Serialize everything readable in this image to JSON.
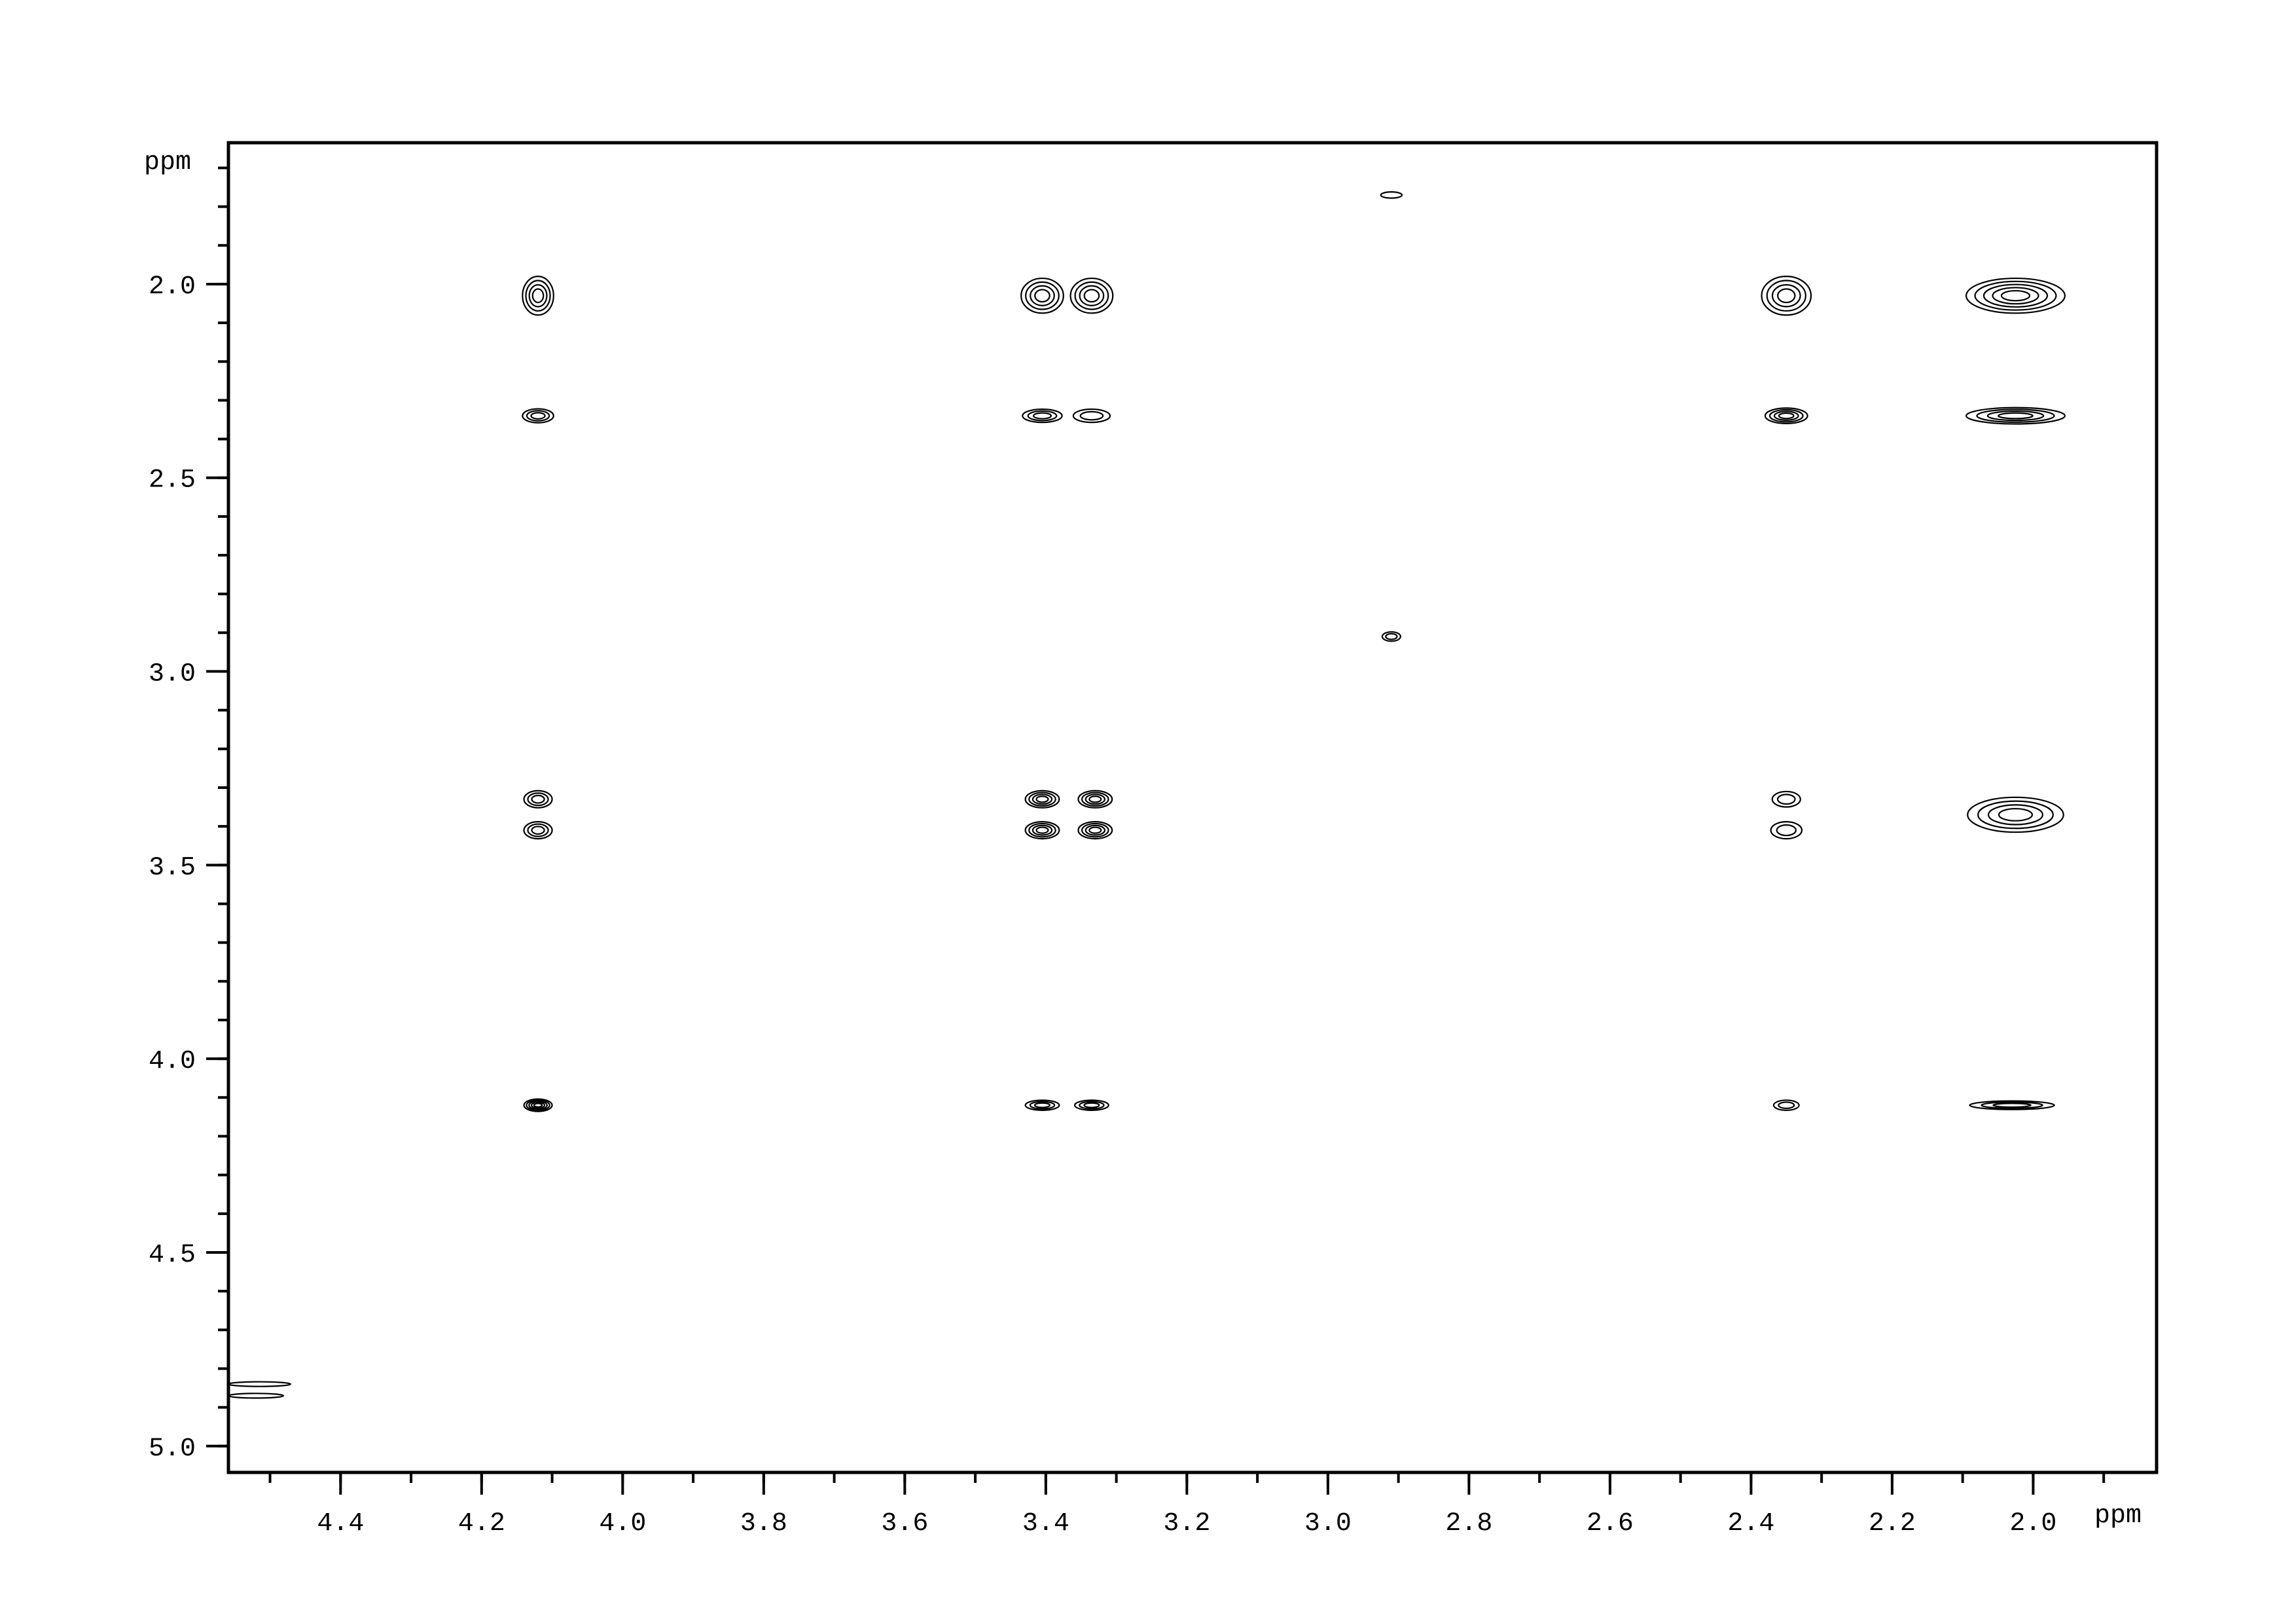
{
  "chart_data": {
    "type": "contour",
    "title": "",
    "xlabel": "ppm",
    "ylabel": "ppm",
    "x_axis": {
      "range": [
        4.559,
        1.825
      ],
      "reversed": true,
      "major_ticks": [
        4.4,
        4.2,
        4.0,
        3.8,
        3.6,
        3.4,
        3.2,
        3.0,
        2.8,
        2.6,
        2.4,
        2.2,
        2.0
      ],
      "tick_labels": [
        "4.4",
        "4.2",
        "4.0",
        "3.8",
        "3.6",
        "3.4",
        "3.2",
        "3.0",
        "2.8",
        "2.6",
        "2.4",
        "2.2",
        "2.0"
      ],
      "minor_step": 0.1
    },
    "y_axis": {
      "range": [
        1.635,
        5.068
      ],
      "reversed": true,
      "major_ticks": [
        2.0,
        2.5,
        3.0,
        3.5,
        4.0,
        4.5,
        5.0
      ],
      "tick_labels": [
        "2.0",
        "2.5",
        "3.0",
        "3.5",
        "4.0",
        "4.5",
        "5.0"
      ],
      "minor_step": 0.1
    },
    "grid": false,
    "line_color": "#000000",
    "peaks": [
      {
        "x": 4.12,
        "y": 2.03,
        "rx": 0.022,
        "ry": 0.05,
        "levels": 4
      },
      {
        "x": 4.12,
        "y": 2.34,
        "rx": 0.022,
        "ry": 0.018,
        "levels": 3
      },
      {
        "x": 4.12,
        "y": 3.33,
        "rx": 0.02,
        "ry": 0.022,
        "levels": 3
      },
      {
        "x": 4.12,
        "y": 3.41,
        "rx": 0.02,
        "ry": 0.022,
        "levels": 3
      },
      {
        "x": 4.12,
        "y": 4.12,
        "rx": 0.02,
        "ry": 0.016,
        "levels": 5
      },
      {
        "x": 3.405,
        "y": 2.03,
        "rx": 0.03,
        "ry": 0.045,
        "levels": 4
      },
      {
        "x": 3.335,
        "y": 2.03,
        "rx": 0.03,
        "ry": 0.045,
        "levels": 4
      },
      {
        "x": 3.405,
        "y": 2.34,
        "rx": 0.028,
        "ry": 0.017,
        "levels": 3
      },
      {
        "x": 3.335,
        "y": 2.34,
        "rx": 0.026,
        "ry": 0.017,
        "levels": 2
      },
      {
        "x": 3.405,
        "y": 3.33,
        "rx": 0.024,
        "ry": 0.022,
        "levels": 4
      },
      {
        "x": 3.405,
        "y": 3.41,
        "rx": 0.024,
        "ry": 0.022,
        "levels": 4
      },
      {
        "x": 3.33,
        "y": 3.33,
        "rx": 0.024,
        "ry": 0.022,
        "levels": 4
      },
      {
        "x": 3.33,
        "y": 3.41,
        "rx": 0.024,
        "ry": 0.022,
        "levels": 4
      },
      {
        "x": 3.405,
        "y": 4.12,
        "rx": 0.024,
        "ry": 0.013,
        "levels": 3
      },
      {
        "x": 3.335,
        "y": 4.12,
        "rx": 0.024,
        "ry": 0.013,
        "levels": 3
      },
      {
        "x": 2.91,
        "y": 1.77,
        "rx": 0.015,
        "ry": 0.008,
        "levels": 1
      },
      {
        "x": 2.91,
        "y": 2.91,
        "rx": 0.013,
        "ry": 0.012,
        "levels": 2
      },
      {
        "x": 2.35,
        "y": 2.03,
        "rx": 0.035,
        "ry": 0.05,
        "levels": 4
      },
      {
        "x": 2.35,
        "y": 2.34,
        "rx": 0.03,
        "ry": 0.02,
        "levels": 4
      },
      {
        "x": 2.35,
        "y": 3.33,
        "rx": 0.02,
        "ry": 0.02,
        "levels": 2
      },
      {
        "x": 2.35,
        "y": 3.41,
        "rx": 0.022,
        "ry": 0.022,
        "levels": 2
      },
      {
        "x": 2.35,
        "y": 4.12,
        "rx": 0.018,
        "ry": 0.013,
        "levels": 2
      },
      {
        "x": 2.025,
        "y": 2.03,
        "rx": 0.07,
        "ry": 0.045,
        "levels": 5
      },
      {
        "x": 2.025,
        "y": 2.34,
        "rx": 0.07,
        "ry": 0.021,
        "levels": 4
      },
      {
        "x": 2.025,
        "y": 3.37,
        "rx": 0.068,
        "ry": 0.045,
        "levels": 4
      },
      {
        "x": 2.03,
        "y": 4.12,
        "rx": 0.06,
        "ry": 0.011,
        "levels": 3
      },
      {
        "x": 4.515,
        "y": 4.84,
        "rx": 0.044,
        "ry": 0.006,
        "levels": 1
      },
      {
        "x": 4.52,
        "y": 4.87,
        "rx": 0.039,
        "ry": 0.006,
        "levels": 1
      }
    ]
  }
}
